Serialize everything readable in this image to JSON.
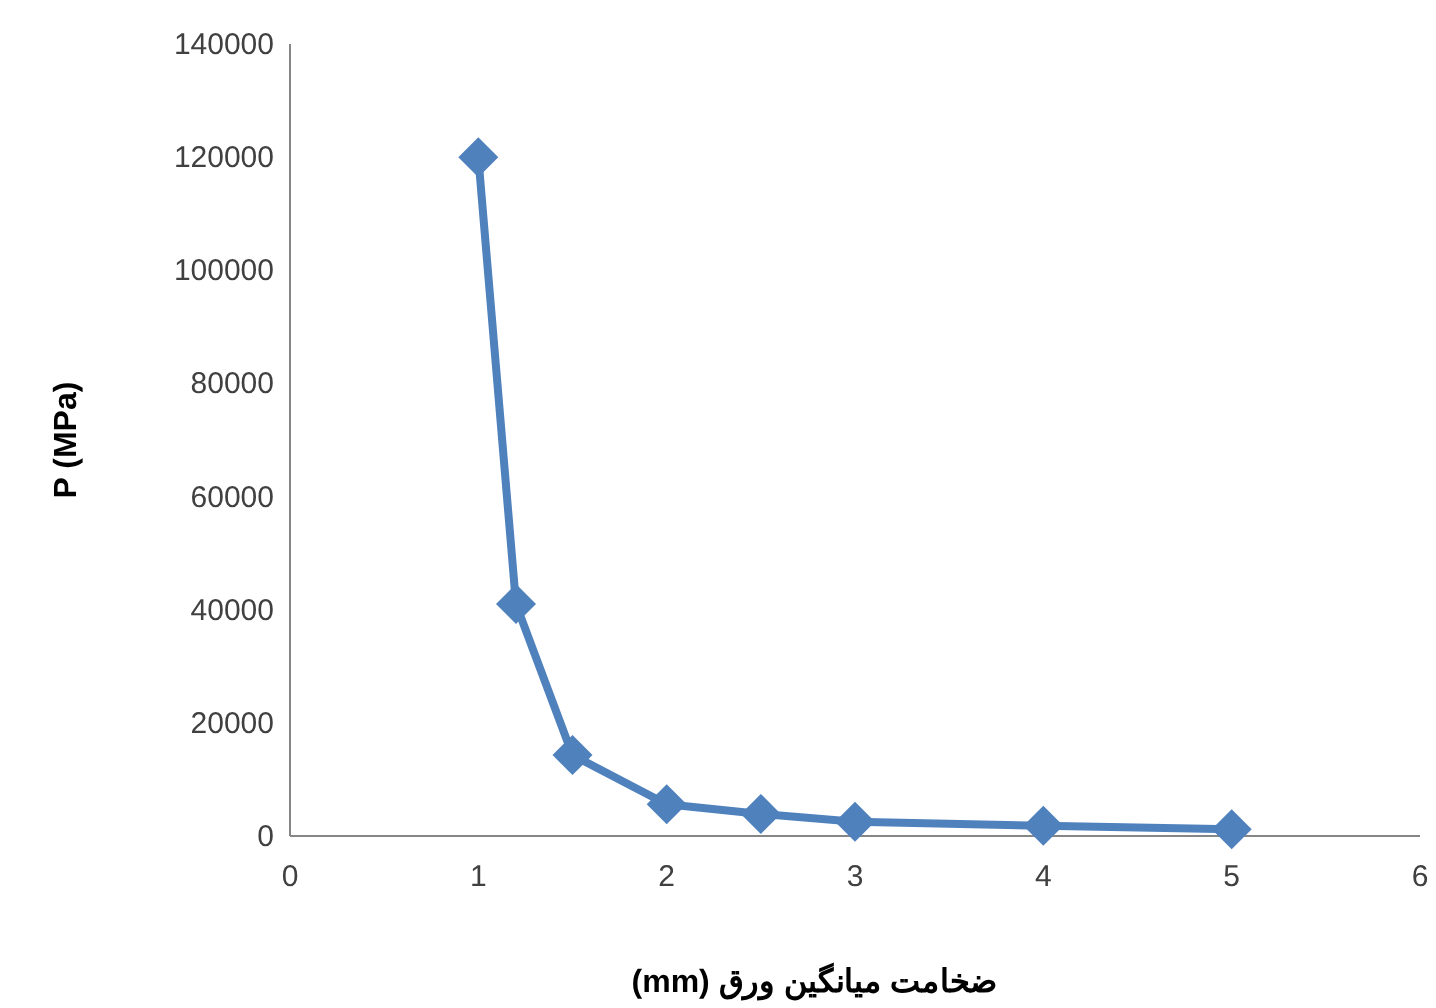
{
  "chart_data": {
    "type": "line",
    "xlabel": "ضخامت میانگین ورق (mm)",
    "ylabel": "P (MPa)",
    "x": [
      1,
      1.2,
      1.5,
      2,
      2.5,
      3,
      4,
      5
    ],
    "series": [
      {
        "color": "#4f81bd",
        "values": [
          120000,
          41000,
          14300,
          5600,
          3900,
          2500,
          1800,
          1200
        ]
      }
    ],
    "xlim": [
      0,
      6
    ],
    "xticks": [
      0,
      1,
      2,
      3,
      4,
      5,
      6
    ],
    "ylim": [
      0,
      140000
    ],
    "yticks": [
      0,
      20000,
      40000,
      60000,
      80000,
      100000,
      120000,
      140000
    ],
    "marker": "diamond",
    "line_style": "solid",
    "grid": false
  }
}
